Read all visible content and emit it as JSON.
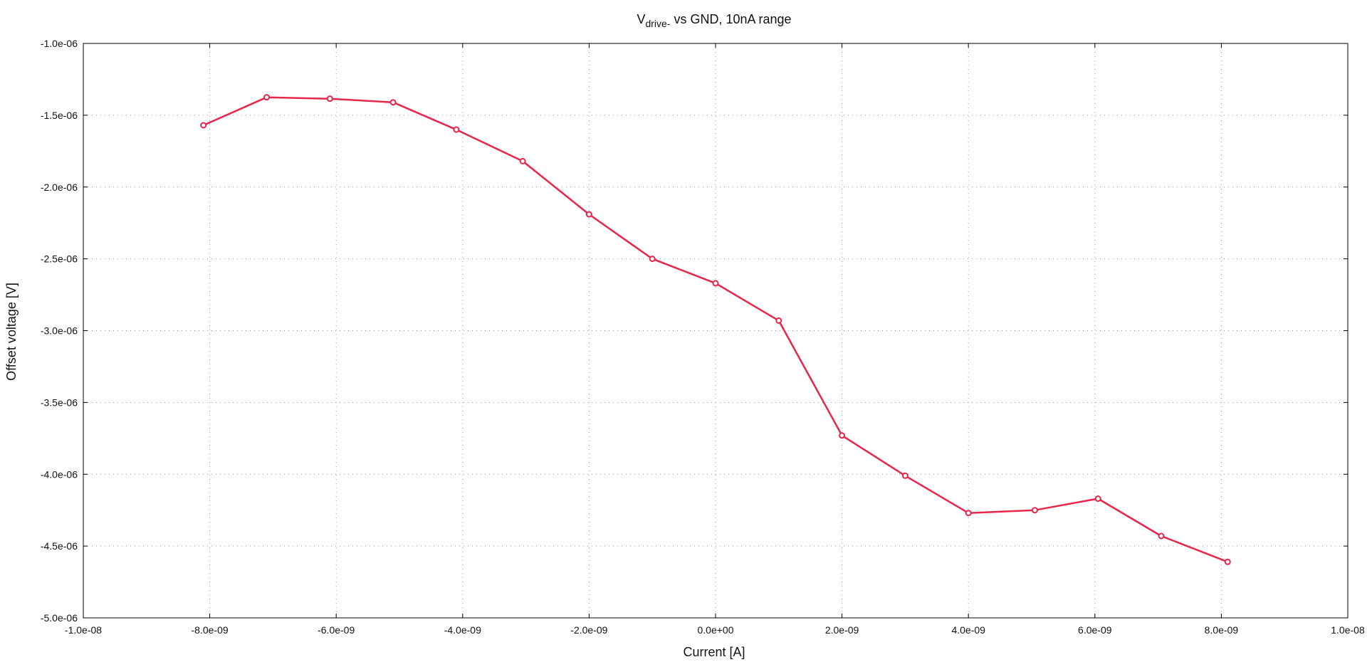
{
  "chart_data": {
    "type": "line",
    "title": {
      "main": "V",
      "subscript": "drive-",
      "rest": " vs GND, 10nA range"
    },
    "xlabel": "Current [A]",
    "ylabel": "Offset voltage [V]",
    "xlim": [
      -1e-08,
      1e-08
    ],
    "ylim": [
      -5e-06,
      -1e-06
    ],
    "x_ticks": [
      -1e-08,
      -8e-09,
      -6e-09,
      -4e-09,
      -2e-09,
      0,
      2e-09,
      4e-09,
      6e-09,
      8e-09,
      1e-08
    ],
    "x_tick_labels": [
      "-1.0e-08",
      "-8.0e-09",
      "-6.0e-09",
      "-4.0e-09",
      "-2.0e-09",
      "0.0e+00",
      "2.0e-09",
      "4.0e-09",
      "6.0e-09",
      "8.0e-09",
      "1.0e-08"
    ],
    "y_ticks": [
      -1e-06,
      -1.5e-06,
      -2e-06,
      -2.5e-06,
      -3e-06,
      -3.5e-06,
      -4e-06,
      -4.5e-06,
      -5e-06
    ],
    "y_tick_labels": [
      "-1.0e-06",
      "-1.5e-06",
      "-2.0e-06",
      "-2.5e-06",
      "-3.0e-06",
      "-3.5e-06",
      "-4.0e-06",
      "-4.5e-06",
      "-5.0e-06"
    ],
    "grid": true,
    "series": [
      {
        "color": "#e8254a",
        "marker": "circle",
        "x": [
          -8.1e-09,
          -7.1e-09,
          -6.1e-09,
          -5.1e-09,
          -4.1e-09,
          -3.05e-09,
          -2e-09,
          -1e-09,
          0.0,
          1e-09,
          2e-09,
          3e-09,
          4e-09,
          5.05e-09,
          6.05e-09,
          7.05e-09,
          8.1e-09
        ],
        "y": [
          -1.57e-06,
          -1.375e-06,
          -1.385e-06,
          -1.41e-06,
          -1.6e-06,
          -1.82e-06,
          -2.19e-06,
          -2.5e-06,
          -2.67e-06,
          -2.93e-06,
          -3.73e-06,
          -4.01e-06,
          -4.27e-06,
          -4.25e-06,
          -4.17e-06,
          -4.43e-06,
          -4.61e-06
        ]
      }
    ]
  }
}
